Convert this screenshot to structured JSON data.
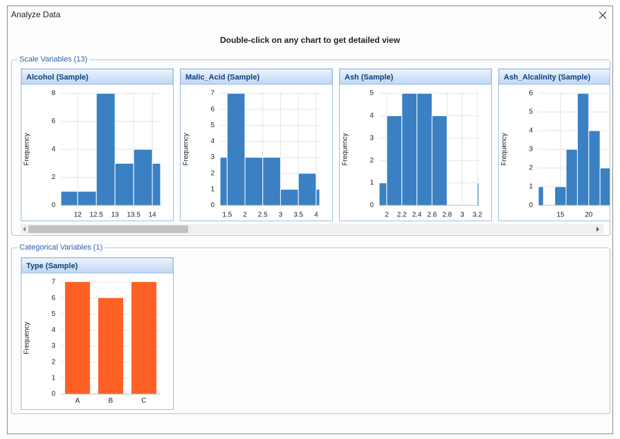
{
  "window_title": "Analyze Data",
  "instruction": "Double-click on any chart to get detailed view",
  "sections": [
    {
      "legend": "Scale Variables (13)"
    },
    {
      "legend": "Categorical Variables (1)"
    }
  ],
  "chart_data": [
    {
      "type": "histogram",
      "title": "Alcohol (Sample)",
      "ylabel": "Frequency",
      "color": "#3a80c3",
      "bins": [
        11.55,
        12,
        12.5,
        13,
        13.5,
        14,
        14.22
      ],
      "values": [
        1,
        1,
        8,
        3,
        4,
        3
      ],
      "xlim": [
        11.55,
        14.22
      ],
      "xticks": [
        12,
        12.5,
        13,
        13.5,
        14
      ],
      "ylim": [
        0,
        8
      ],
      "yticks": [
        0,
        2,
        4,
        6,
        8
      ],
      "grid": true
    },
    {
      "type": "histogram",
      "title": "Malic_Acid (Sample)",
      "ylabel": "Frequency",
      "color": "#3a80c3",
      "bins": [
        1.3,
        1.5,
        2,
        2.5,
        3,
        3.5,
        4,
        4.1
      ],
      "values": [
        3,
        7,
        3,
        3,
        1,
        2,
        1
      ],
      "xlim": [
        1.3,
        4.1
      ],
      "xticks": [
        1.5,
        2,
        2.5,
        3,
        3.5,
        4
      ],
      "ylim": [
        0,
        7
      ],
      "yticks": [
        0,
        1,
        2,
        3,
        4,
        5,
        6,
        7
      ],
      "grid": true
    },
    {
      "type": "histogram",
      "title": "Ash (Sample)",
      "ylabel": "Frequency",
      "color": "#3a80c3",
      "bins": [
        1.9,
        2,
        2.2,
        2.4,
        2.6,
        2.8,
        3,
        3.2,
        3.22
      ],
      "values": [
        1,
        4,
        5,
        5,
        4,
        0,
        0,
        1
      ],
      "xlim": [
        1.9,
        3.22
      ],
      "xticks": [
        2,
        2.2,
        2.4,
        2.6,
        2.8,
        3,
        3.2
      ],
      "ylim": [
        0,
        5
      ],
      "yticks": [
        0,
        1,
        2,
        3,
        4,
        5
      ],
      "grid": true
    },
    {
      "type": "histogram",
      "title": "Ash_Alcalinity (Sample)",
      "ylabel": "Frequency",
      "color": "#3a80c3",
      "bins": [
        11.1,
        12,
        14,
        16,
        18,
        20,
        22,
        24
      ],
      "values": [
        1,
        0,
        1,
        3,
        6,
        4,
        2
      ],
      "xlim": [
        11.1,
        28.7
      ],
      "xticks": [
        15,
        20
      ],
      "ylim": [
        0,
        6
      ],
      "yticks": [
        0,
        1,
        2,
        3,
        4,
        5,
        6
      ],
      "grid": true
    },
    {
      "type": "bar",
      "title": "Type (Sample)",
      "ylabel": "Frequency",
      "color": "#ff6026",
      "categories": [
        "A",
        "B",
        "C"
      ],
      "values": [
        7,
        6,
        7
      ],
      "ylim": [
        0,
        7
      ],
      "yticks": [
        0,
        1,
        2,
        3,
        4,
        5,
        6,
        7
      ],
      "grid": true
    }
  ]
}
